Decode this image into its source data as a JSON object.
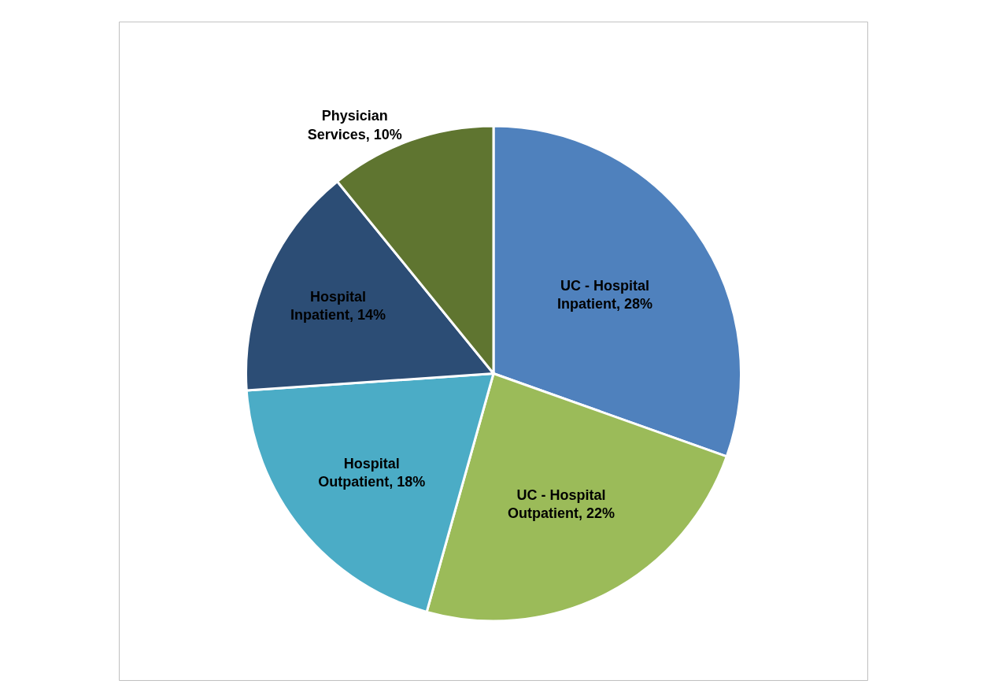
{
  "chart_data": {
    "type": "pie",
    "categories": [
      "UC - Hospital Inpatient",
      "UC - Hospital Outpatient",
      "Hospital Outpatient",
      "Hospital Inpatient",
      "Physician Services"
    ],
    "values": [
      28,
      22,
      18,
      14,
      10
    ],
    "value_labels": [
      "28%",
      "22%",
      "18%",
      "14%",
      "10%"
    ],
    "colors": [
      "#4f81bd",
      "#9bbb59",
      "#4bacc6",
      "#2c4d75",
      "#5f7530"
    ],
    "legend": false
  }
}
